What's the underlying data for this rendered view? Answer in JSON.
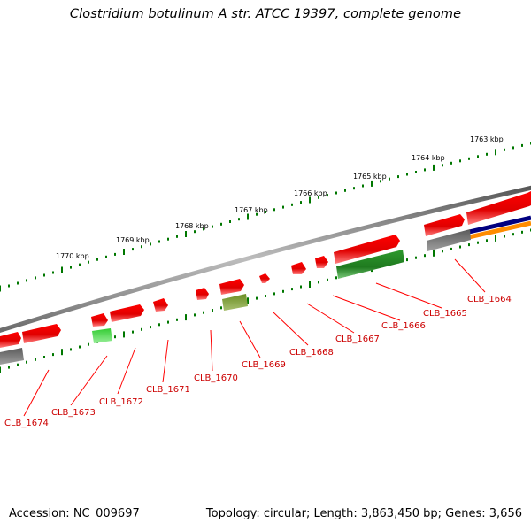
{
  "title": "Clostridium botulinum A str. ATCC 19397, complete genome",
  "footer": {
    "accession": "Accession: NC_009697",
    "summary": "Topology: circular; Length: 3,863,450 bp; Genes: 3,656"
  },
  "ruler_labels": [
    "1763 kbp",
    "1764 kbp",
    "1765 kbp",
    "1766 kbp",
    "1767 kbp",
    "1768 kbp",
    "1769 kbp",
    "1770 kbp"
  ],
  "gene_labels": [
    "CLB_1664",
    "CLB_1665",
    "CLB_1666",
    "CLB_1667",
    "CLB_1668",
    "CLB_1669",
    "CLB_1670",
    "CLB_1671",
    "CLB_1672",
    "CLB_1673",
    "CLB_1674"
  ],
  "colors": {
    "backbone": "#808080",
    "forward_gene": "#ff0000",
    "reverse_cds_green": "#228b22",
    "reverse_cds_lime": "#33cc33",
    "reverse_cds_olive": "#6b8e23",
    "reverse_gray": "#6e6e6e",
    "navy_track": "#000080",
    "orange_track": "#ff8c00",
    "ruler": "#007700",
    "label": "#cc0000"
  }
}
